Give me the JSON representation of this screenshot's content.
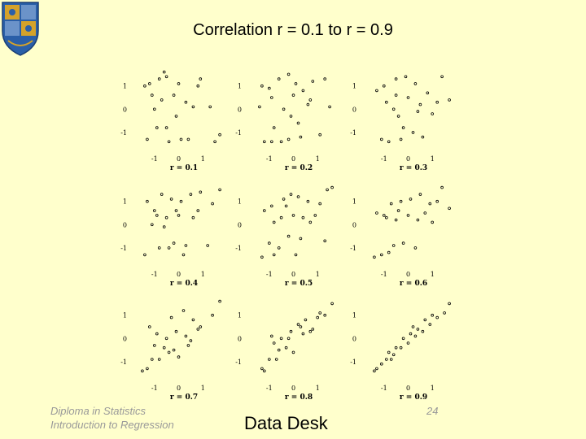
{
  "slide": {
    "title": "Correlation r = 0.1 to r = 0.9",
    "footer_line1": "Diploma in Statistics",
    "footer_line2": "Introduction to Regression",
    "footer_center": "Data Desk",
    "page_number": "24"
  },
  "colors": {
    "background": "#ffffcc",
    "points": "#000000",
    "crest_blue": "#2a5fa8",
    "crest_gold": "#d4a22a"
  },
  "chart_data": [
    {
      "type": "scatter",
      "xlabel": "r = 0.1",
      "xticks": [
        "-1",
        "0",
        "1"
      ],
      "yticks": [
        "1",
        "0",
        "-1"
      ],
      "xlim": [
        -1.8,
        1.9
      ],
      "ylim": [
        -1.6,
        1.9
      ],
      "x": [
        -1.4,
        -1.2,
        -0.8,
        -0.5,
        -1.1,
        -0.7,
        -0.2,
        0.0,
        0.3,
        0.9,
        -1.0,
        0.6,
        1.3,
        -0.5,
        -0.9,
        0.1,
        1.7,
        -0.4,
        -0.1,
        1.5,
        -1.3,
        0.4,
        0.8,
        -0.6
      ],
      "y": [
        1.0,
        1.1,
        1.3,
        1.4,
        0.6,
        0.4,
        0.6,
        1.1,
        0.3,
        1.3,
        0.0,
        0.1,
        0.1,
        -0.8,
        -0.8,
        -1.3,
        -1.1,
        -1.4,
        -0.3,
        -1.4,
        -1.3,
        -1.3,
        1.0,
        1.6
      ]
    },
    {
      "type": "scatter",
      "xlabel": "r = 0.2",
      "xticks": [
        "-1",
        "0",
        "1"
      ],
      "yticks": [
        "1",
        "0",
        "-1"
      ],
      "xlim": [
        -1.8,
        1.9
      ],
      "ylim": [
        -1.6,
        1.9
      ],
      "x": [
        -1.3,
        -1.0,
        -0.6,
        -0.2,
        0.1,
        0.4,
        0.7,
        1.3,
        -0.9,
        -0.4,
        0.0,
        0.6,
        -1.4,
        -0.8,
        0.2,
        1.1,
        -0.5,
        -0.2,
        -1.2,
        -0.9,
        0.3,
        0.8,
        1.5,
        -0.1
      ],
      "y": [
        1.0,
        0.9,
        1.3,
        1.5,
        1.1,
        0.8,
        0.4,
        1.3,
        0.5,
        0.0,
        0.6,
        0.2,
        0.1,
        -0.8,
        -0.6,
        -1.1,
        -1.4,
        -1.3,
        -1.4,
        -1.4,
        -1.2,
        1.2,
        0.1,
        -0.3
      ]
    },
    {
      "type": "scatter",
      "xlabel": "r = 0.3",
      "xticks": [
        "-1",
        "0",
        "1"
      ],
      "yticks": [
        "1",
        "0",
        "-1"
      ],
      "xlim": [
        -1.8,
        1.9
      ],
      "ylim": [
        -1.6,
        1.9
      ],
      "x": [
        -1.3,
        -1.0,
        -0.5,
        -0.1,
        0.3,
        0.8,
        1.4,
        -0.9,
        -0.6,
        0.0,
        0.5,
        1.2,
        -0.4,
        -0.2,
        0.2,
        1.0,
        -1.1,
        -0.8,
        -0.3,
        0.6,
        1.7,
        -0.5,
        0.4
      ],
      "y": [
        0.8,
        1.0,
        1.3,
        1.4,
        1.1,
        0.7,
        1.4,
        0.3,
        0.0,
        0.5,
        0.2,
        0.3,
        -0.3,
        -0.8,
        -1.0,
        -0.2,
        -1.3,
        -1.4,
        -1.3,
        -1.2,
        0.4,
        0.6,
        -0.1
      ]
    },
    {
      "type": "scatter",
      "xlabel": "r = 0.4",
      "xticks": [
        "-1",
        "0",
        "1"
      ],
      "yticks": [
        "1",
        "0",
        "-1"
      ],
      "xlim": [
        -1.8,
        1.9
      ],
      "ylim": [
        -1.6,
        1.9
      ],
      "x": [
        -1.3,
        -1.0,
        -0.7,
        -0.3,
        0.1,
        0.5,
        0.8,
        1.4,
        -0.9,
        -0.5,
        0.0,
        0.6,
        -1.1,
        -0.6,
        0.3,
        1.2,
        -0.8,
        -0.2,
        0.2,
        -1.4,
        -0.4,
        0.9,
        1.7,
        -0.1
      ],
      "y": [
        1.0,
        0.6,
        1.3,
        1.1,
        1.0,
        1.3,
        0.6,
        0.9,
        0.4,
        0.3,
        0.4,
        0.3,
        0.0,
        -0.1,
        -0.9,
        -0.9,
        -1.0,
        -0.8,
        -1.3,
        -1.3,
        -1.0,
        1.4,
        1.5,
        0.6
      ]
    },
    {
      "type": "scatter",
      "xlabel": "r = 0.5",
      "xticks": [
        "-1",
        "0",
        "1"
      ],
      "yticks": [
        "1",
        "0",
        "-1"
      ],
      "xlim": [
        -1.8,
        1.9
      ],
      "ylim": [
        -1.6,
        1.9
      ],
      "x": [
        -1.2,
        -0.9,
        -0.4,
        -0.1,
        0.2,
        0.6,
        1.1,
        1.4,
        -0.8,
        -0.5,
        0.0,
        0.4,
        0.9,
        -1.0,
        -0.6,
        -0.2,
        0.3,
        1.3,
        -1.3,
        -0.8,
        0.1,
        1.6,
        -0.3,
        0.7
      ],
      "y": [
        0.6,
        0.8,
        1.1,
        1.3,
        1.2,
        1.0,
        0.9,
        1.5,
        0.1,
        0.3,
        0.4,
        0.3,
        0.4,
        -0.8,
        -1.0,
        -0.5,
        -0.6,
        -0.7,
        -1.4,
        -1.3,
        -1.3,
        1.6,
        0.8,
        0.1
      ]
    },
    {
      "type": "scatter",
      "xlabel": "r = 0.6",
      "xticks": [
        "-1",
        "0",
        "1"
      ],
      "yticks": [
        "1",
        "0",
        "-1"
      ],
      "xlim": [
        -1.8,
        1.9
      ],
      "ylim": [
        -1.6,
        1.9
      ],
      "x": [
        -1.3,
        -1.0,
        -0.7,
        -0.3,
        0.1,
        0.5,
        0.9,
        1.4,
        -0.9,
        -0.5,
        0.0,
        0.4,
        1.0,
        -1.1,
        -0.6,
        -0.2,
        0.3,
        -1.4,
        -0.8,
        1.7,
        -0.4,
        0.7,
        1.2
      ],
      "y": [
        0.5,
        0.4,
        0.9,
        1.0,
        1.1,
        1.3,
        0.9,
        1.6,
        0.3,
        0.2,
        0.4,
        0.2,
        0.1,
        -1.3,
        -0.9,
        -0.8,
        -1.0,
        -1.4,
        -1.2,
        0.7,
        0.6,
        0.5,
        1.0
      ]
    },
    {
      "type": "scatter",
      "xlabel": "r = 0.7",
      "xticks": [
        "-1",
        "0",
        "1"
      ],
      "yticks": [
        "1",
        "0",
        "-1"
      ],
      "xlim": [
        -1.8,
        1.9
      ],
      "ylim": [
        -1.6,
        1.9
      ],
      "x": [
        -1.3,
        -1.1,
        -0.8,
        -0.4,
        0.0,
        0.4,
        0.8,
        1.4,
        -0.9,
        -0.5,
        -0.1,
        0.3,
        0.9,
        -1.0,
        -0.6,
        -0.2,
        0.5,
        -1.5,
        -1.2,
        -0.3,
        1.7,
        0.6,
        0.2
      ],
      "y": [
        -1.3,
        -0.9,
        -0.9,
        -0.6,
        -0.8,
        -0.3,
        0.4,
        1.0,
        0.2,
        0.0,
        0.3,
        0.1,
        0.5,
        -0.3,
        -0.4,
        -0.5,
        -0.1,
        -1.4,
        0.5,
        0.9,
        1.6,
        0.8,
        1.2
      ]
    },
    {
      "type": "scatter",
      "xlabel": "r = 0.8",
      "xticks": [
        "-1",
        "0",
        "1"
      ],
      "yticks": [
        "1",
        "0",
        "-1"
      ],
      "xlim": [
        -1.8,
        1.9
      ],
      "ylim": [
        -1.6,
        1.9
      ],
      "x": [
        -1.3,
        -1.0,
        -0.7,
        -0.3,
        0.0,
        0.4,
        0.8,
        1.3,
        -0.9,
        -0.5,
        -0.1,
        0.3,
        0.7,
        1.1,
        -1.2,
        -0.6,
        -0.2,
        0.5,
        1.6,
        -0.8,
        0.2,
        1.0
      ],
      "y": [
        -1.3,
        -0.9,
        -0.9,
        -0.4,
        -0.6,
        0.2,
        0.4,
        1.0,
        0.1,
        0.0,
        0.3,
        0.5,
        0.3,
        1.1,
        -1.4,
        -0.5,
        0.0,
        0.8,
        1.5,
        -0.2,
        0.6,
        0.9
      ]
    },
    {
      "type": "scatter",
      "xlabel": "r = 0.9",
      "xticks": [
        "-1",
        "0",
        "1"
      ],
      "yticks": [
        "1",
        "0",
        "-1"
      ],
      "xlim": [
        -1.8,
        1.9
      ],
      "ylim": [
        -1.6,
        1.9
      ],
      "x": [
        -1.3,
        -1.1,
        -0.9,
        -0.6,
        -0.3,
        0.0,
        0.3,
        0.6,
        0.9,
        1.2,
        1.5,
        -0.8,
        -0.5,
        -0.2,
        0.1,
        0.4,
        0.7,
        1.0,
        -1.4,
        -0.7,
        1.7,
        0.2
      ],
      "y": [
        -1.3,
        -1.1,
        -0.9,
        -0.7,
        -0.4,
        -0.2,
        0.1,
        0.3,
        0.6,
        0.9,
        1.1,
        -0.6,
        -0.4,
        0.0,
        0.2,
        0.4,
        0.8,
        1.0,
        -1.4,
        -0.9,
        1.5,
        0.5
      ]
    }
  ]
}
